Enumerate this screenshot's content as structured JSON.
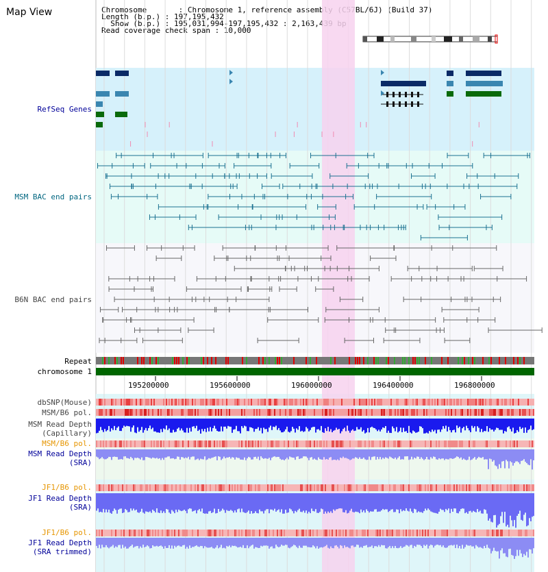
{
  "page": {
    "title": "Map View"
  },
  "info": {
    "chromosome_line": "Chromosome       : Chromosome 1, reference assembly (C57BL/6J) (Build 37)",
    "length_line": "Length (b.p.) : 197,195,432",
    "show_line": "  Show (b.p.) : 195,031,994-197,195,432 : 2,163,439 bp",
    "coverage_line": "Read coverage check span : 10,000"
  },
  "tracks": {
    "refseq": "RefSeq Genes",
    "msm_bac": "MSM BAC end pairs",
    "b6n_bac": "B6N BAC end pairs",
    "repeat": "Repeat",
    "chromosome": "chromosome 1",
    "dbsnp": "dbSNP(Mouse)",
    "msm_b6_pol": "MSM/B6 pol.",
    "msm_depth_cap_1": "MSM Read Depth",
    "msm_depth_cap_2": "(Capillary)",
    "msm_b6_pol_sra": "MSM/B6 pol.",
    "msm_depth_sra_1": "MSM Read Depth",
    "msm_depth_sra_2": "(SRA)",
    "jf1_b6_pol": "JF1/B6 pol.",
    "jf1_depth_sra_1": "JF1 Read Depth",
    "jf1_depth_sra_2": "(SRA)",
    "jf1_b6_pol_trim": "JF1/B6 pol.",
    "jf1_depth_trim_1": "JF1 Read Depth",
    "jf1_depth_trim_2": "(SRA trimmed)"
  },
  "axis": {
    "ticks": [
      "195200000",
      "195600000",
      "196000000",
      "196400000",
      "196800000"
    ]
  },
  "colors": {
    "refseq_bg": "#d6f1fb",
    "msm_bac_bg": "#e6fbf7",
    "b6n_bac_bg": "#f7f7fb",
    "highlight": "#f7d2ee",
    "chromosome_bar": "#006600",
    "label_navy": "#000099",
    "label_teal": "#006680",
    "label_orange": "#e69500"
  },
  "icons": [
    "chromosome-ideogram-icon"
  ]
}
